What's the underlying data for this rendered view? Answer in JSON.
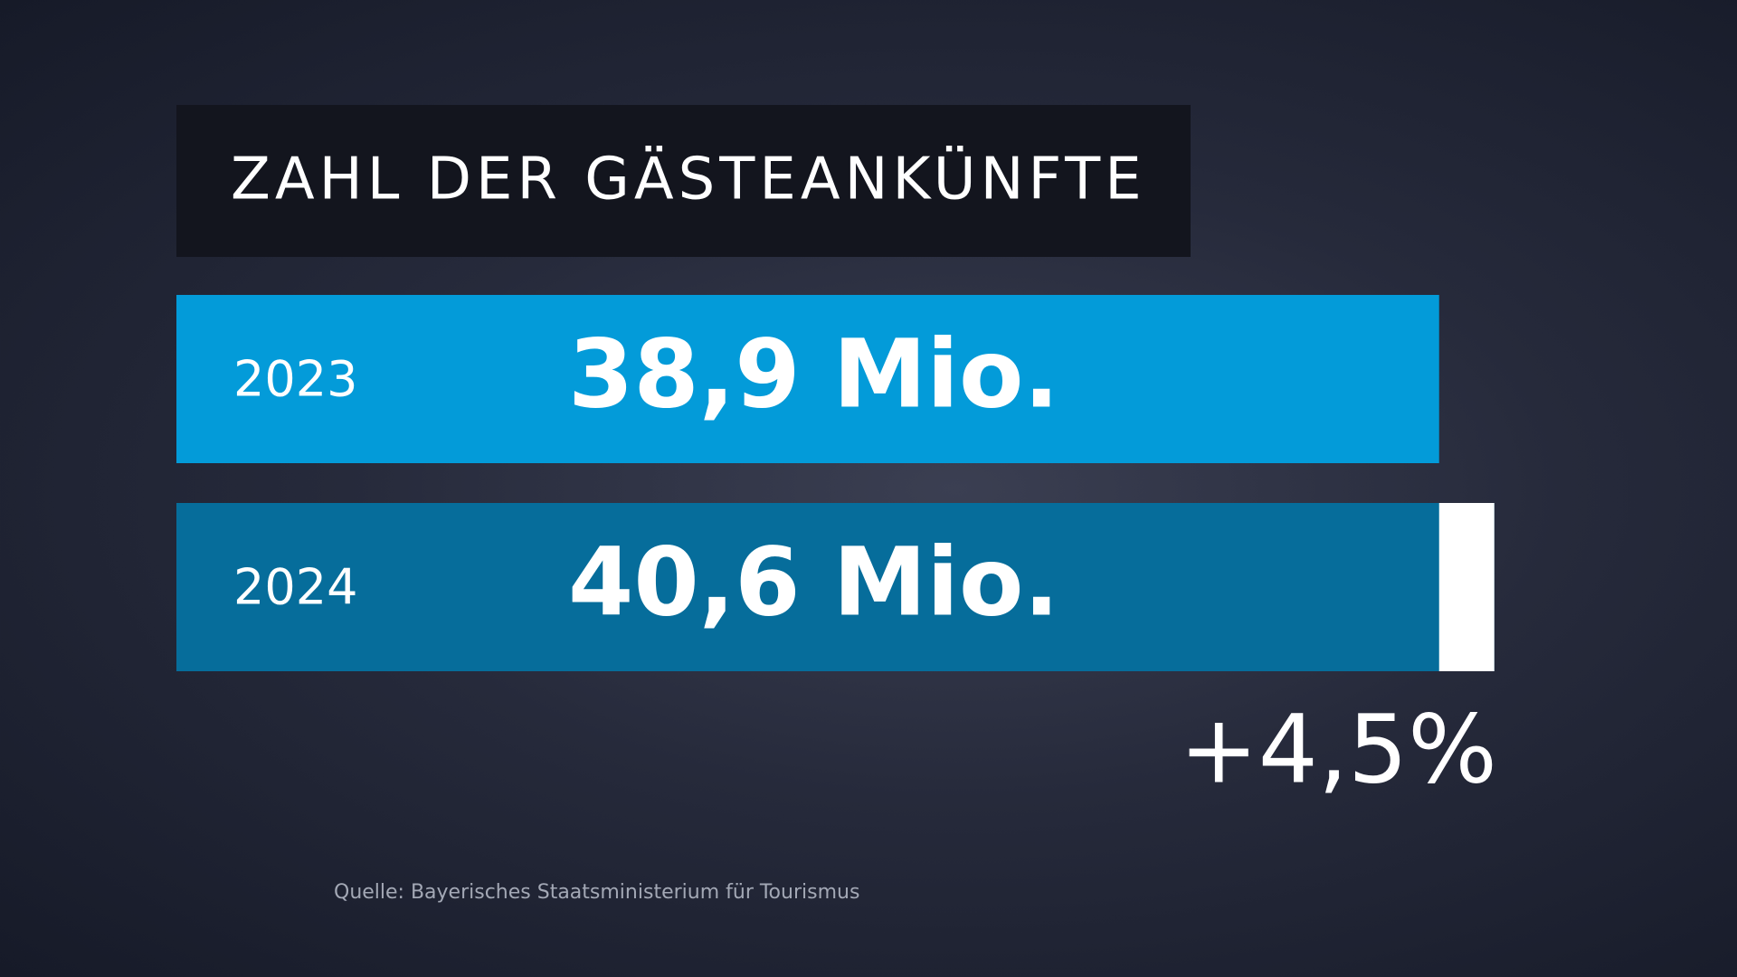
{
  "chart_data": {
    "type": "hbar",
    "title": "ZAHL DER GÄSTEANKÜNFTE",
    "categories": [
      "2023",
      "2024"
    ],
    "values": [
      38.9,
      40.6
    ],
    "value_labels": [
      "38,9 Mio.",
      "40,6 Mio."
    ],
    "colors": [
      "#039bd9",
      "#066d9b"
    ],
    "highlight_color": "#ffffff",
    "annotation": "+4,5%",
    "source": "Quelle: Bayerisches Staatsministerium für Tourismus"
  }
}
